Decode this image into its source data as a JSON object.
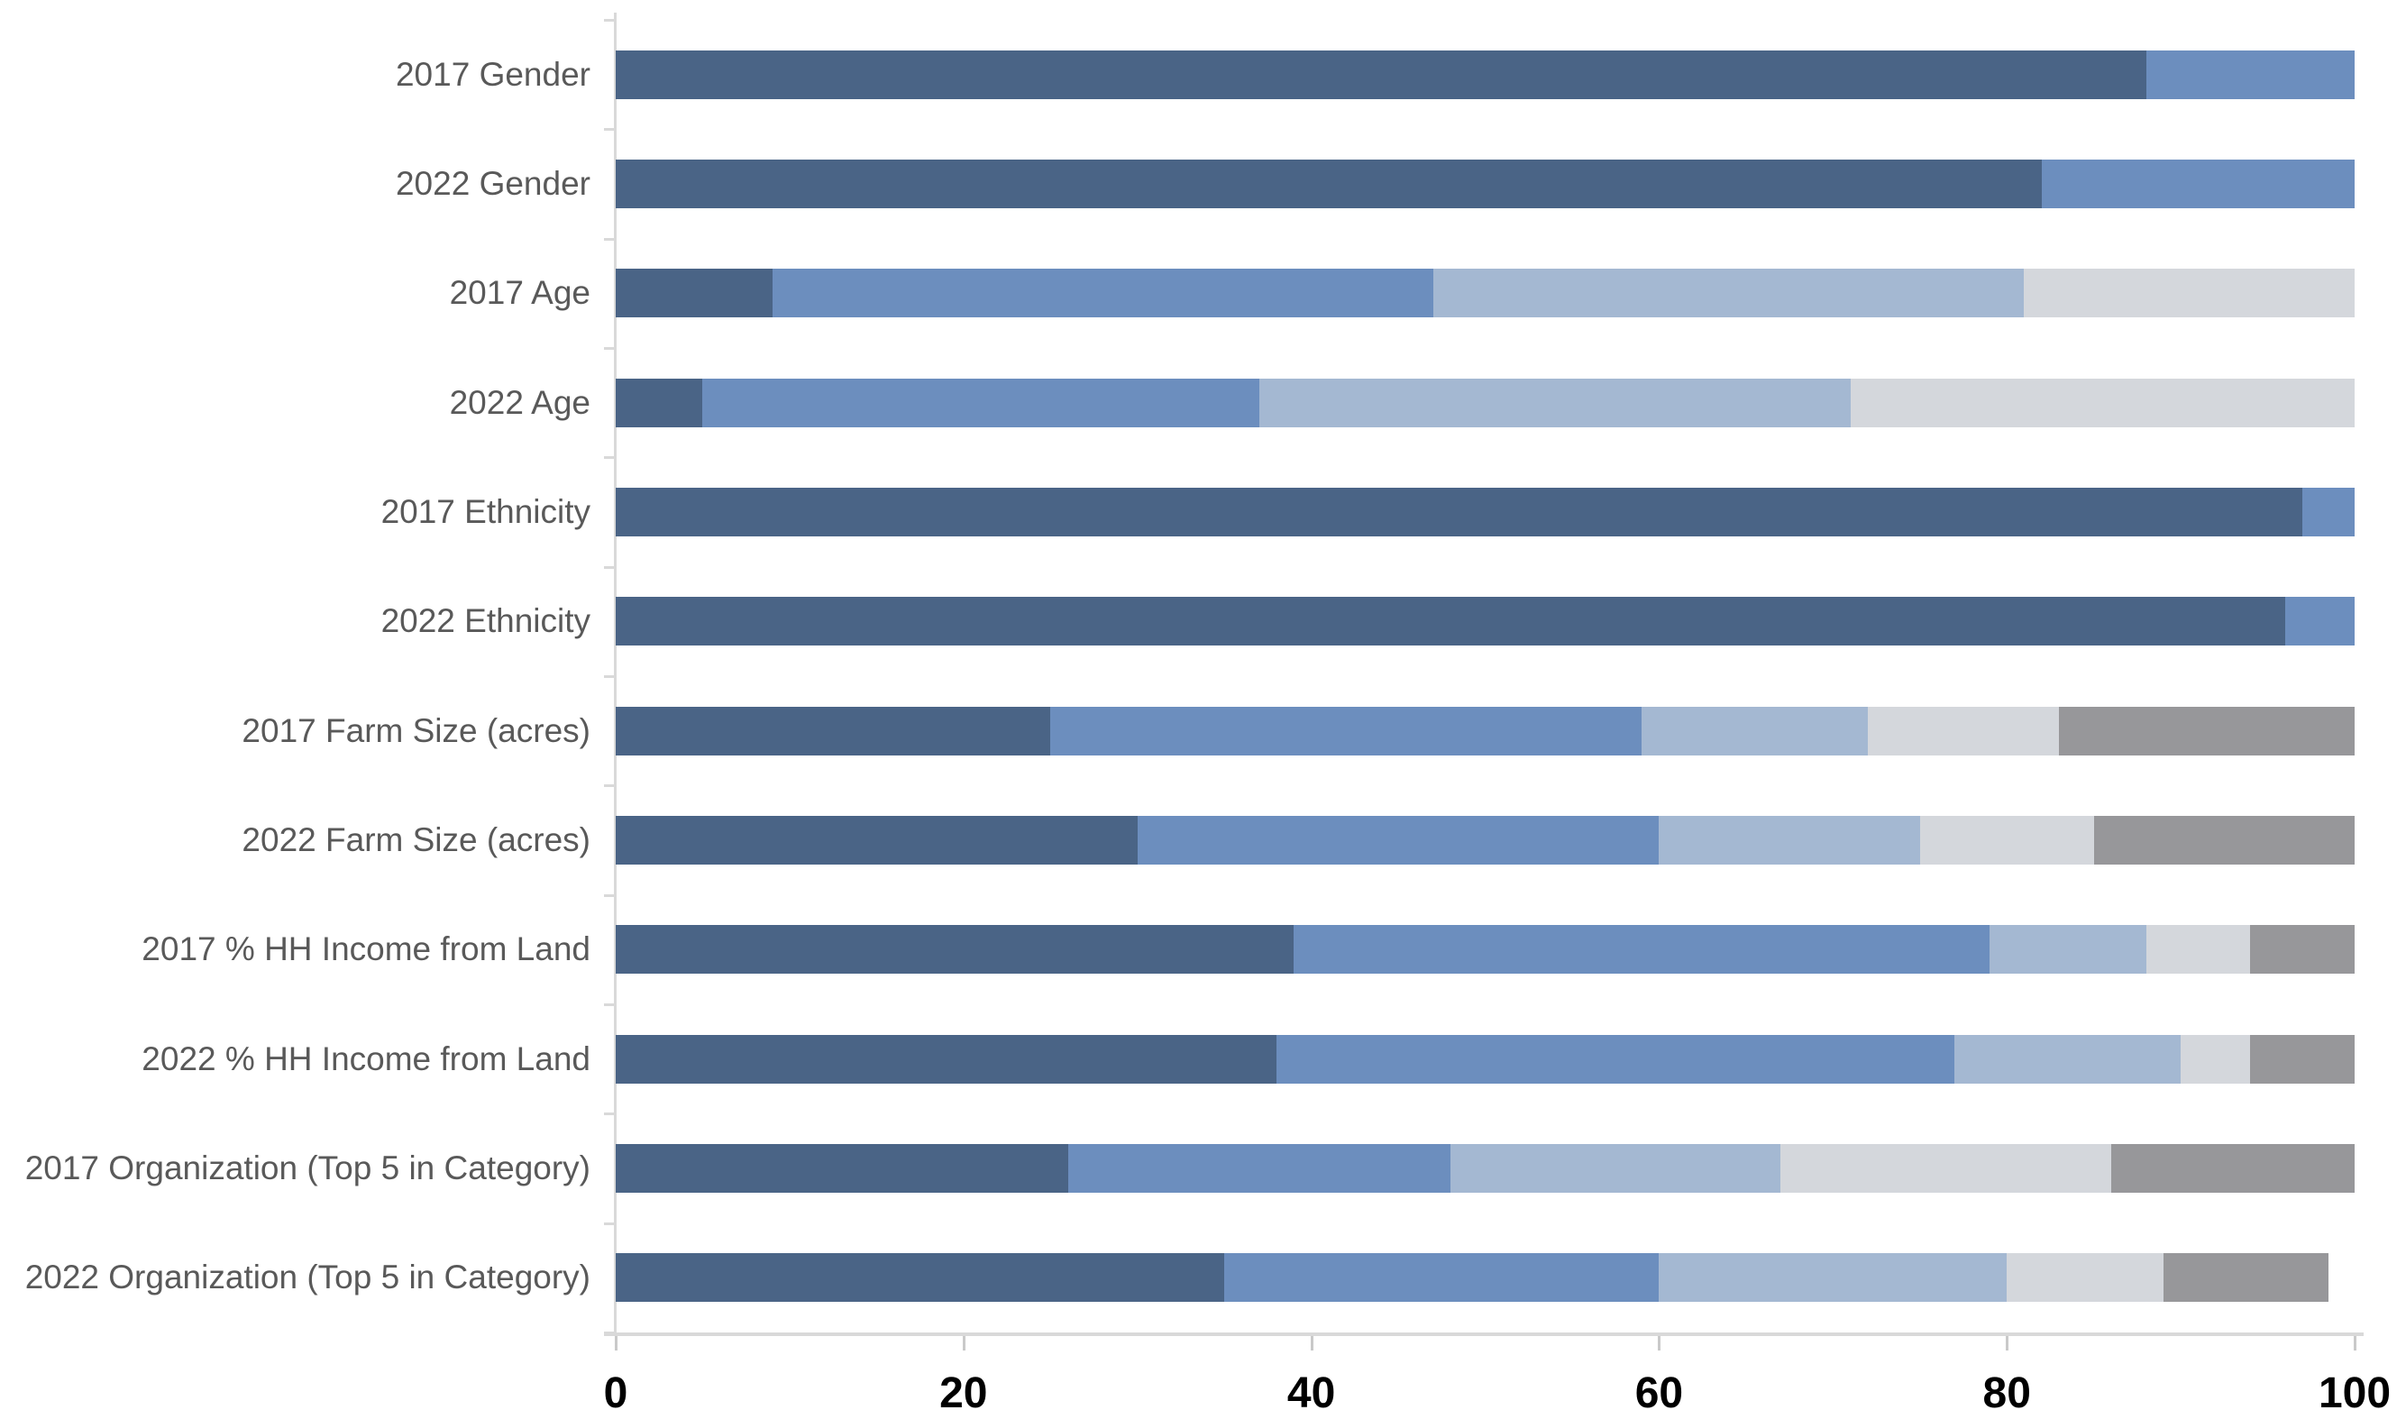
{
  "page": {
    "background": "#FFFFFF"
  },
  "chart_data": {
    "type": "bar",
    "variant": "horizontal-stacked",
    "title": "",
    "legend": {
      "visible": false
    },
    "grid": false,
    "categories": [
      "2017 Gender",
      "2022 Gender",
      "2017 Age",
      "2022 Age",
      "2017 Ethnicity",
      "2022 Ethnicity",
      "2017 Farm Size (acres)",
      "2022 Farm Size (acres)",
      "2017 % HH Income from Land",
      "2022 % HH Income from Land",
      "2017 Organization (Top 5 in Category)",
      "2022 Organization (Top 5 in Category)"
    ],
    "values": [
      [
        88,
        12
      ],
      [
        82,
        18
      ],
      [
        9,
        38,
        34,
        19
      ],
      [
        5,
        32,
        34,
        29
      ],
      [
        97,
        3
      ],
      [
        96,
        4
      ],
      [
        25,
        34,
        13,
        11,
        17
      ],
      [
        30,
        30,
        15,
        10,
        15
      ],
      [
        39,
        40,
        9,
        6,
        6
      ],
      [
        38,
        39,
        13,
        4,
        6
      ],
      [
        26,
        22,
        19,
        19,
        14
      ],
      [
        35,
        25,
        20,
        9,
        9.5
      ]
    ],
    "segment_colors": [
      "#4A6486",
      "#6C8EBE",
      "#A4B8D2",
      "#D4D7DC",
      "#97979A"
    ],
    "x_axis": {
      "min": 0,
      "max": 100,
      "tick_interval": 20,
      "ticks": [
        0,
        20,
        40,
        60,
        80,
        100
      ],
      "tick_labels": [
        "0",
        "20",
        "40",
        "60",
        "80",
        "100"
      ]
    },
    "colors": {
      "axis_line": "#D9D9D9",
      "x_tick_mark": "#C9C9C9",
      "category_label": "#595959",
      "tick_label": "#000000",
      "background": "#FFFFFF"
    }
  }
}
